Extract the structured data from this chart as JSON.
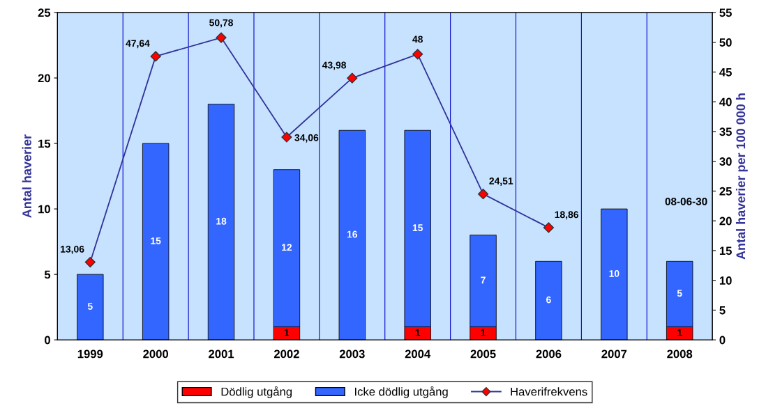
{
  "chart_data": {
    "type": "bar",
    "stacked": true,
    "categories": [
      "1999",
      "2000",
      "2001",
      "2002",
      "2003",
      "2004",
      "2005",
      "2006",
      "2007",
      "2008"
    ],
    "series": [
      {
        "name": "Dödlig utgång",
        "color": "#ff0000",
        "values": [
          0,
          0,
          0,
          1,
          0,
          1,
          1,
          0,
          0,
          1
        ],
        "value_labels": [
          null,
          null,
          null,
          "1",
          null,
          "1",
          "1",
          null,
          null,
          "1"
        ]
      },
      {
        "name": "Icke dödlig utgång",
        "color": "#3366ff",
        "values": [
          5,
          15,
          18,
          12,
          16,
          15,
          7,
          6,
          10,
          5
        ],
        "value_labels": [
          "5",
          "15",
          "18",
          "12",
          "16",
          "15",
          "7",
          "6",
          "10",
          "5"
        ]
      },
      {
        "name": "Haverifrekvens",
        "type": "line",
        "axis": "y2",
        "color": "#333399",
        "marker": "diamond",
        "values": [
          13.06,
          47.64,
          50.78,
          34.06,
          43.98,
          48,
          24.51,
          18.86,
          null,
          null
        ],
        "value_labels": [
          "13,06",
          "47,64",
          "50,78",
          "34,06",
          "43,98",
          "48",
          "24,51",
          "18,86",
          null,
          null
        ]
      }
    ],
    "ylabel": "Antal haverier",
    "y2label": "Antal haverier per 100 000 h",
    "ylim": [
      0,
      25
    ],
    "yticks": [
      0,
      5,
      10,
      15,
      20,
      25
    ],
    "y2lim": [
      0,
      55
    ],
    "y2ticks": [
      0,
      5,
      10,
      15,
      20,
      25,
      30,
      35,
      40,
      45,
      50,
      55
    ],
    "annotations": [
      "08-06-30"
    ],
    "grid": "x",
    "legend": "bottom"
  }
}
